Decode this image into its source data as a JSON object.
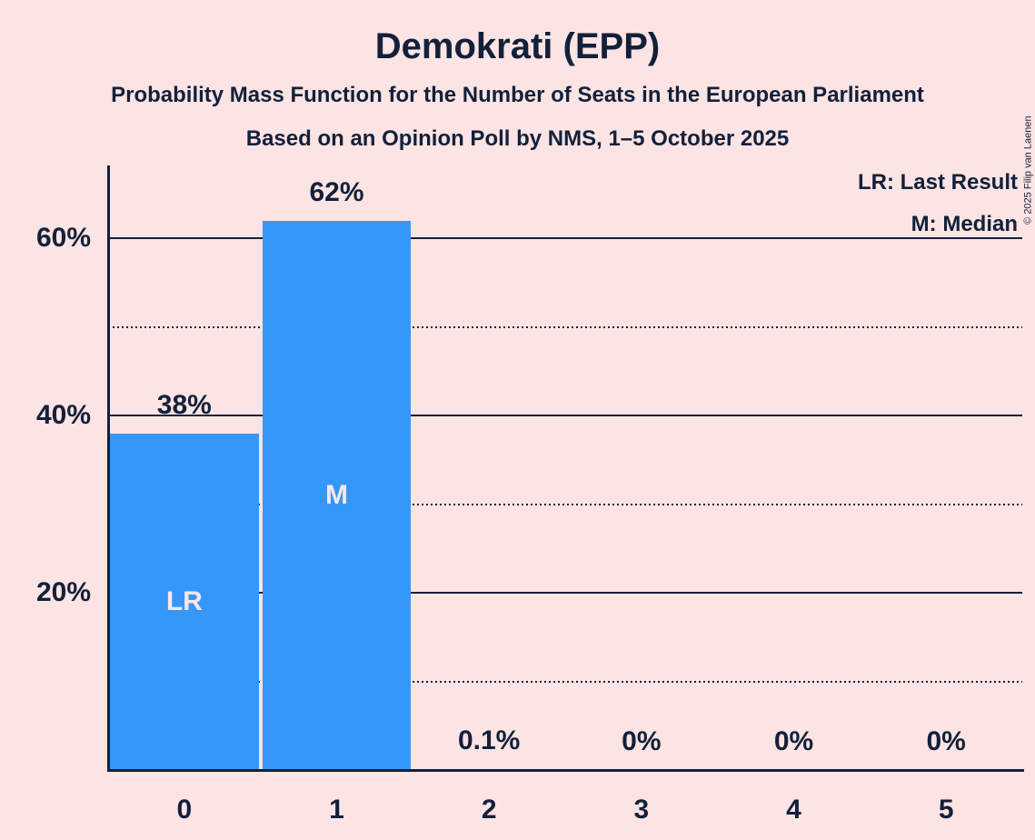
{
  "title": "Demokrati (EPP)",
  "subtitle1": "Probability Mass Function for the Number of Seats in the European Parliament",
  "subtitle2": "Based on an Opinion Poll by NMS, 1–5 October 2025",
  "copyright": "© 2025 Filip van Laenen",
  "legend": {
    "lr": "LR: Last Result",
    "m": "M: Median"
  },
  "colors": {
    "background": "#fce4e4",
    "bar": "#3697fa",
    "text": "#13203a",
    "bar_label": "#f9e7e7"
  },
  "chart_data": {
    "type": "bar",
    "title": "Demokrati (EPP)",
    "subtitle": "Probability Mass Function for the Number of Seats in the European Parliament",
    "source_line": "Based on an Opinion Poll by NMS, 1–5 October 2025",
    "xlabel": "",
    "ylabel": "",
    "categories": [
      "0",
      "1",
      "2",
      "3",
      "4",
      "5"
    ],
    "values": [
      38,
      62,
      0.1,
      0,
      0,
      0
    ],
    "value_labels": [
      "38%",
      "62%",
      "0.1%",
      "0%",
      "0%",
      "0%"
    ],
    "bar_annotations": [
      "LR",
      "M",
      null,
      null,
      null,
      null
    ],
    "annotation_meanings": {
      "LR": "Last Result",
      "M": "Median"
    },
    "yticks": [
      {
        "value": 20,
        "label": "20%"
      },
      {
        "value": 40,
        "label": "40%"
      },
      {
        "value": 60,
        "label": "60%"
      }
    ],
    "dotted_gridlines": [
      10,
      30,
      50
    ],
    "ylim": [
      0,
      68
    ],
    "grid": true,
    "legend_position": "top-right",
    "legend_entries": [
      "LR: Last Result",
      "M: Median"
    ]
  }
}
